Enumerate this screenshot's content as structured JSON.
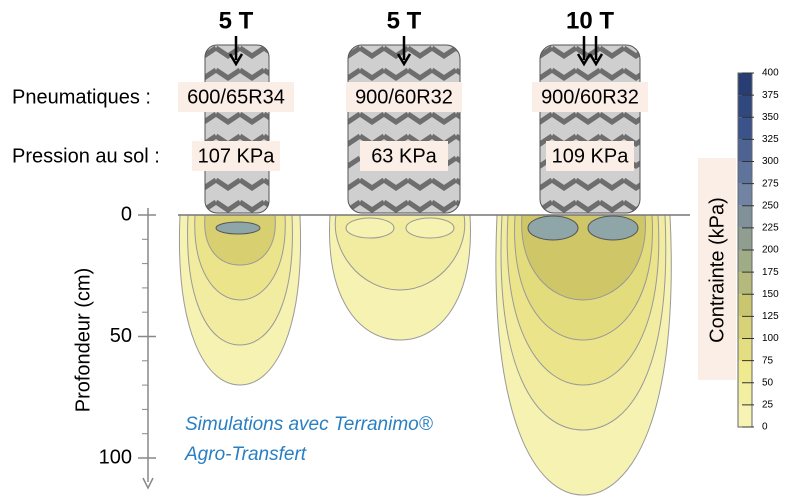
{
  "row_labels": [
    "Pneumatiques :",
    "Pression au sol :"
  ],
  "tires": [
    {
      "load": "5 T",
      "size": "600/65R34",
      "pressure": "107 KPa"
    },
    {
      "load": "5 T",
      "size": "900/60R32",
      "pressure": "63 KPa"
    },
    {
      "load": "10 T",
      "size": "900/60R32",
      "pressure": "109 KPa"
    }
  ],
  "depth_axis": {
    "label": "Profondeur (cm)",
    "ticks": [
      0,
      50,
      100
    ]
  },
  "colorbar": {
    "label": "Contrainte (kPa)",
    "ticks": [
      0,
      25,
      50,
      75,
      100,
      125,
      150,
      175,
      200,
      225,
      250,
      275,
      300,
      325,
      350,
      375,
      400
    ]
  },
  "caption": [
    "Simulations avec Terranimo®",
    "Agro-Transfert"
  ]
}
